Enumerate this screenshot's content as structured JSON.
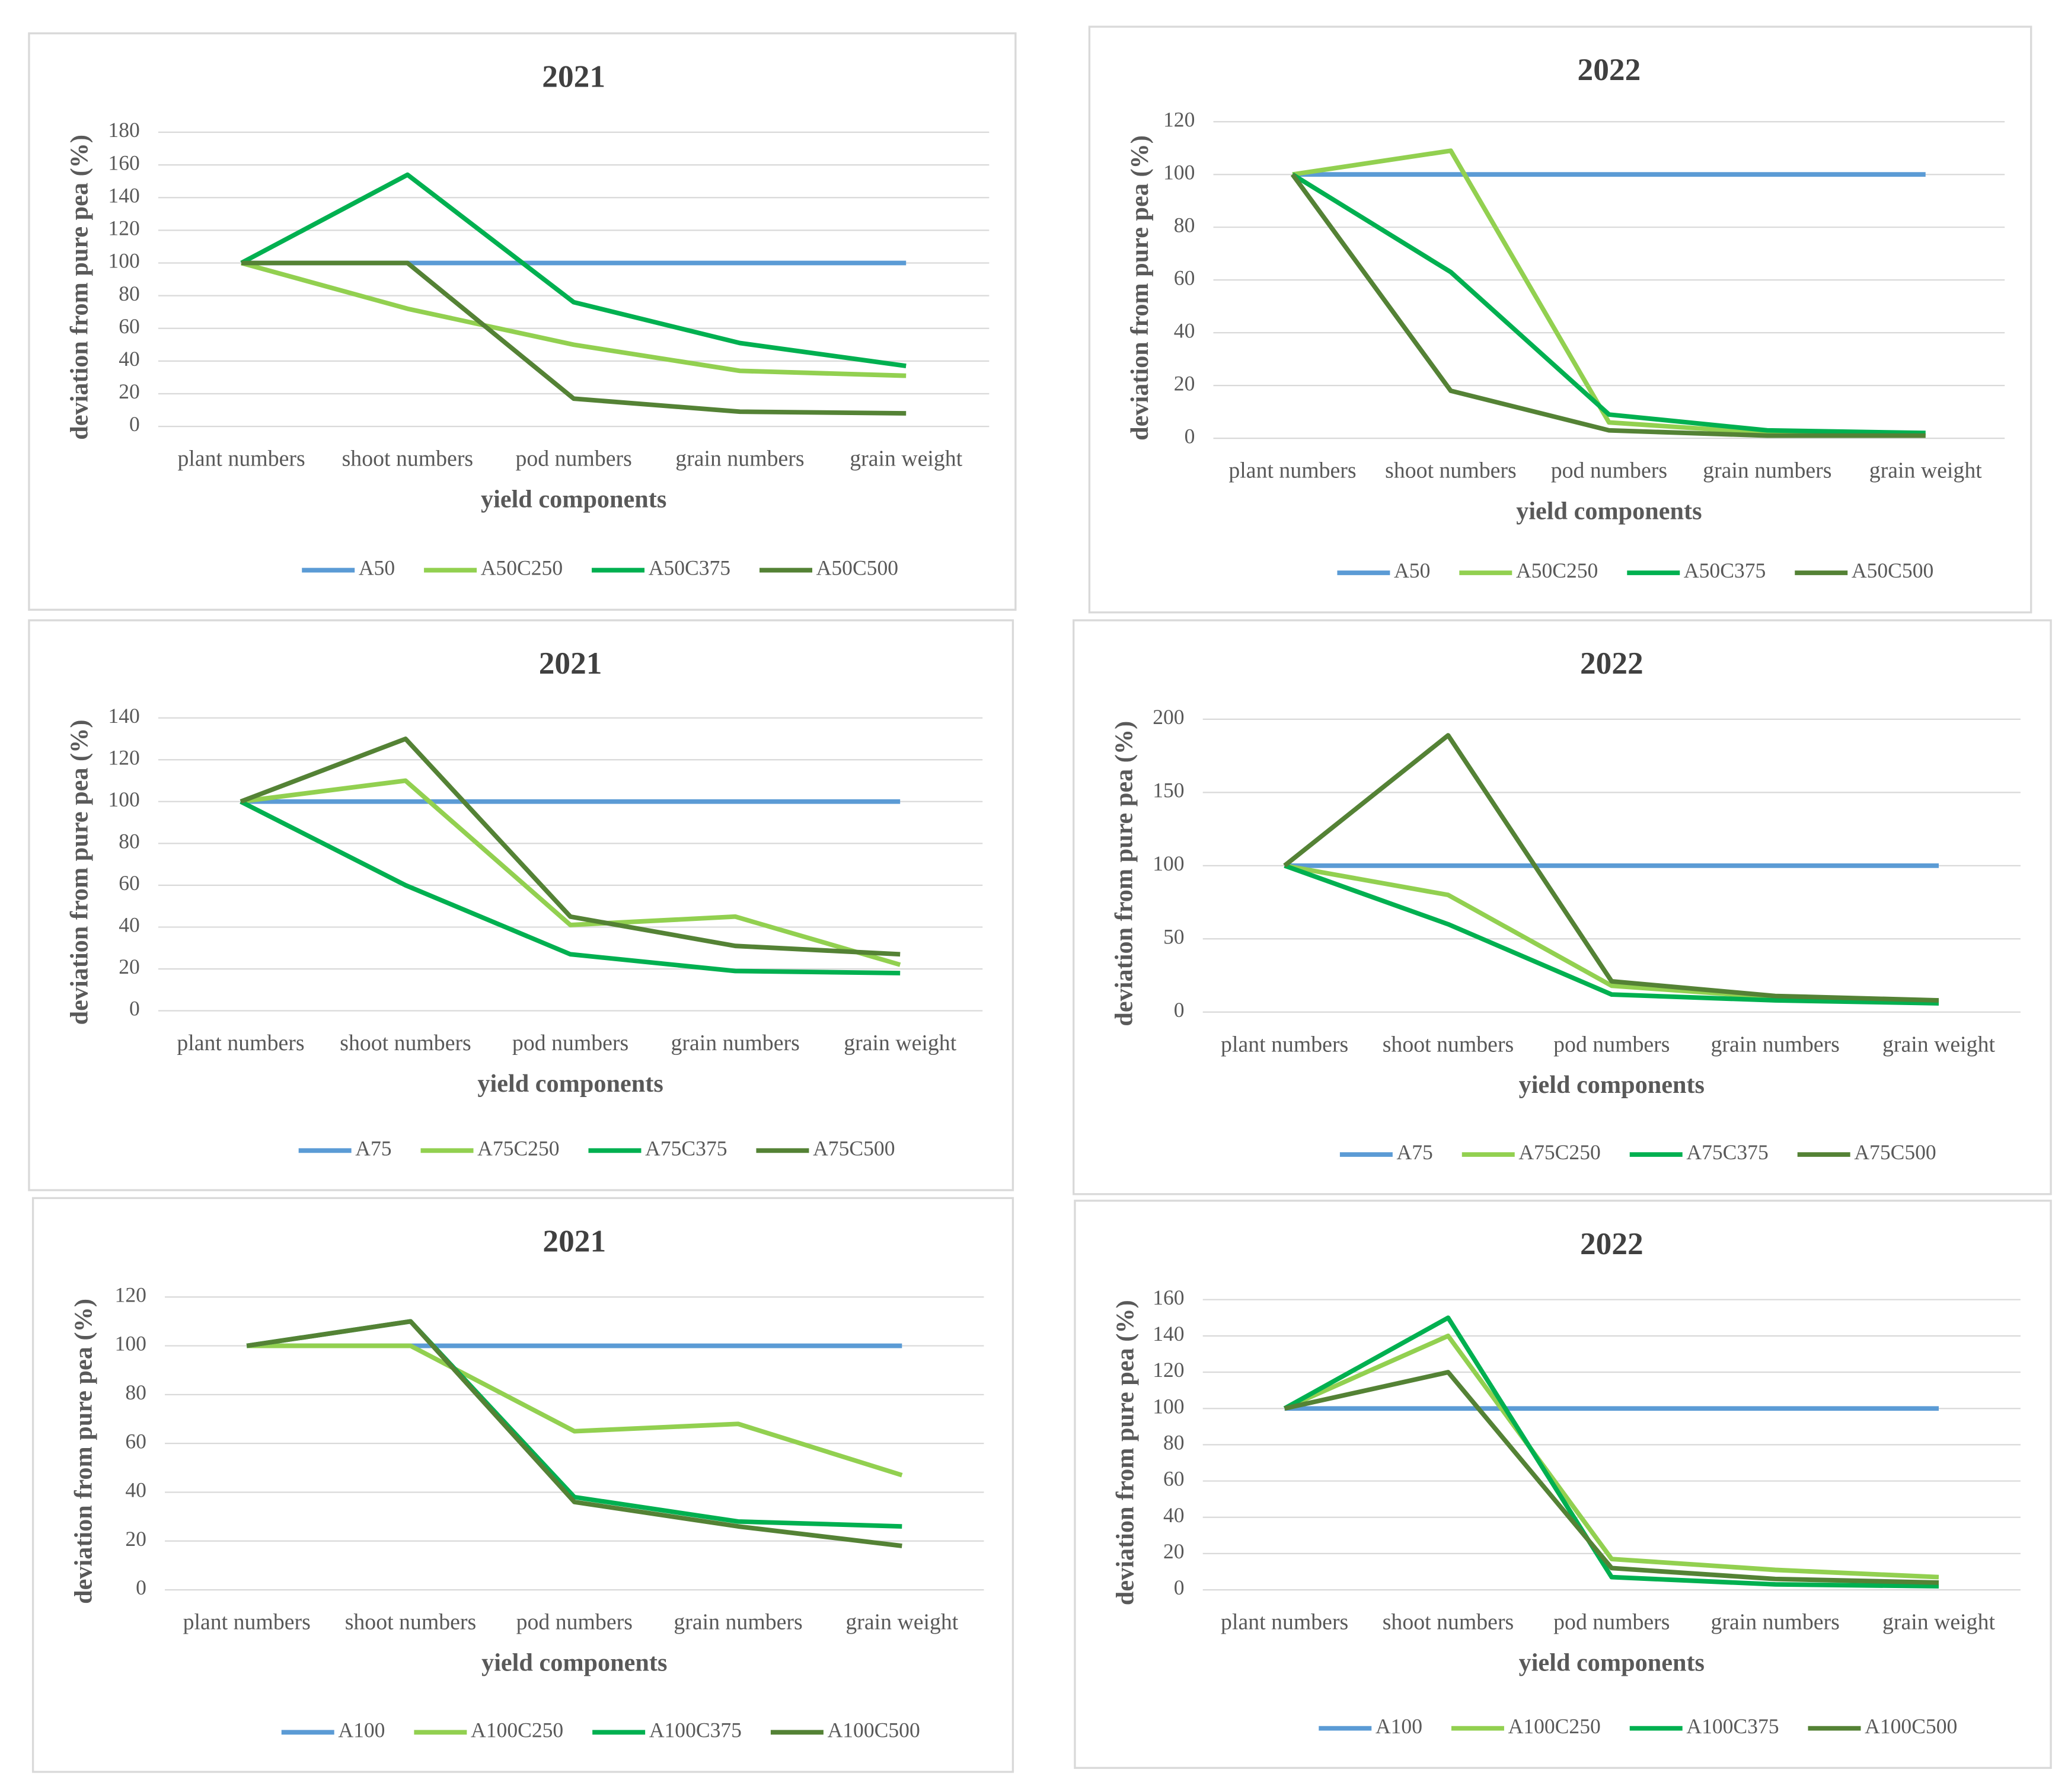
{
  "chart_data": [
    {
      "type": "line",
      "title": "2021",
      "x_label": "yield components",
      "y_label": "deviation from pure pea (%)",
      "categories": [
        "plant numbers",
        "shoot numbers",
        "pod numbers",
        "grain numbers",
        "grain weight"
      ],
      "ylim": [
        0,
        180
      ],
      "yticks": [
        0,
        20,
        40,
        60,
        80,
        100,
        120,
        140,
        160,
        180
      ],
      "grid": true,
      "legend": "bottom",
      "series": [
        {
          "name": "A50",
          "color": "#5b9bd5",
          "values": [
            100,
            100,
            100,
            100,
            100
          ]
        },
        {
          "name": "A50C250",
          "color": "#92d050",
          "values": [
            100,
            72,
            50,
            34,
            31
          ]
        },
        {
          "name": "A50C375",
          "color": "#00b050",
          "values": [
            100,
            154,
            76,
            51,
            37
          ]
        },
        {
          "name": "A50C500",
          "color": "#548235",
          "values": [
            100,
            100,
            17,
            9,
            8
          ]
        }
      ]
    },
    {
      "type": "line",
      "title": "2022",
      "x_label": "yield components",
      "y_label": "deviation from pure pea (%)",
      "categories": [
        "plant numbers",
        "shoot numbers",
        "pod numbers",
        "grain numbers",
        "grain weight"
      ],
      "ylim": [
        0,
        120
      ],
      "yticks": [
        0,
        20,
        40,
        60,
        80,
        100,
        120
      ],
      "grid": true,
      "legend": "bottom",
      "series": [
        {
          "name": "A50",
          "color": "#5b9bd5",
          "values": [
            100,
            100,
            100,
            100,
            100
          ]
        },
        {
          "name": "A50C250",
          "color": "#92d050",
          "values": [
            100,
            109,
            6,
            2,
            1
          ]
        },
        {
          "name": "A50C375",
          "color": "#00b050",
          "values": [
            100,
            63,
            9,
            3,
            2
          ]
        },
        {
          "name": "A50C500",
          "color": "#548235",
          "values": [
            100,
            18,
            3,
            1,
            1
          ]
        }
      ]
    },
    {
      "type": "line",
      "title": "2021",
      "x_label": "yield components",
      "y_label": "deviation from pure pea (%)",
      "categories": [
        "plant numbers",
        "shoot numbers",
        "pod numbers",
        "grain numbers",
        "grain weight"
      ],
      "ylim": [
        0,
        140
      ],
      "yticks": [
        0,
        20,
        40,
        60,
        80,
        100,
        120,
        140
      ],
      "grid": true,
      "legend": "bottom",
      "series": [
        {
          "name": "A75",
          "color": "#5b9bd5",
          "values": [
            100,
            100,
            100,
            100,
            100
          ]
        },
        {
          "name": "A75C250",
          "color": "#92d050",
          "values": [
            100,
            110,
            41,
            45,
            22
          ]
        },
        {
          "name": "A75C375",
          "color": "#00b050",
          "values": [
            100,
            60,
            27,
            19,
            18
          ]
        },
        {
          "name": "A75C500",
          "color": "#548235",
          "values": [
            100,
            130,
            45,
            31,
            27
          ]
        }
      ]
    },
    {
      "type": "line",
      "title": "2022",
      "x_label": "yield components",
      "y_label": "deviation from  pure pea (%)",
      "categories": [
        "plant numbers",
        "shoot numbers",
        "pod numbers",
        "grain numbers",
        "grain weight"
      ],
      "ylim": [
        0,
        200
      ],
      "yticks": [
        0,
        50,
        100,
        150,
        200
      ],
      "grid": true,
      "legend": "bottom",
      "series": [
        {
          "name": "A75",
          "color": "#5b9bd5",
          "values": [
            100,
            100,
            100,
            100,
            100
          ]
        },
        {
          "name": "A75C250",
          "color": "#92d050",
          "values": [
            100,
            80,
            18,
            10,
            7
          ]
        },
        {
          "name": "A75C375",
          "color": "#00b050",
          "values": [
            100,
            60,
            12,
            8,
            6
          ]
        },
        {
          "name": "A75C500",
          "color": "#548235",
          "values": [
            100,
            189,
            21,
            11,
            8
          ]
        }
      ]
    },
    {
      "type": "line",
      "title": "2021",
      "x_label": "yield components",
      "y_label": "deviation from pure pea (%)",
      "categories": [
        "plant numbers",
        "shoot numbers",
        "pod numbers",
        "grain numbers",
        "grain weight"
      ],
      "ylim": [
        0,
        120
      ],
      "yticks": [
        0,
        20,
        40,
        60,
        80,
        100,
        120
      ],
      "grid": true,
      "legend": "bottom",
      "series": [
        {
          "name": "A100",
          "color": "#5b9bd5",
          "values": [
            100,
            100,
            100,
            100,
            100
          ]
        },
        {
          "name": "A100C250",
          "color": "#92d050",
          "values": [
            100,
            100,
            65,
            68,
            47
          ]
        },
        {
          "name": "A100C375",
          "color": "#00b050",
          "values": [
            100,
            110,
            38,
            28,
            26
          ]
        },
        {
          "name": "A100C500",
          "color": "#548235",
          "values": [
            100,
            110,
            36,
            26,
            18
          ]
        }
      ]
    },
    {
      "type": "line",
      "title": "2022",
      "x_label": "yield components",
      "y_label": "deviation from pure pea (%)",
      "categories": [
        "plant numbers",
        "shoot numbers",
        "pod numbers",
        "grain numbers",
        "grain weight"
      ],
      "ylim": [
        0,
        160
      ],
      "yticks": [
        0,
        20,
        40,
        60,
        80,
        100,
        120,
        140,
        160
      ],
      "grid": true,
      "legend": "bottom",
      "series": [
        {
          "name": "A100",
          "color": "#5b9bd5",
          "values": [
            100,
            100,
            100,
            100,
            100
          ]
        },
        {
          "name": "A100C250",
          "color": "#92d050",
          "values": [
            100,
            140,
            17,
            11,
            7
          ]
        },
        {
          "name": "A100C375",
          "color": "#00b050",
          "values": [
            100,
            150,
            7,
            3,
            2
          ]
        },
        {
          "name": "A100C500",
          "color": "#548235",
          "values": [
            100,
            120,
            12,
            6,
            4
          ]
        }
      ]
    }
  ]
}
